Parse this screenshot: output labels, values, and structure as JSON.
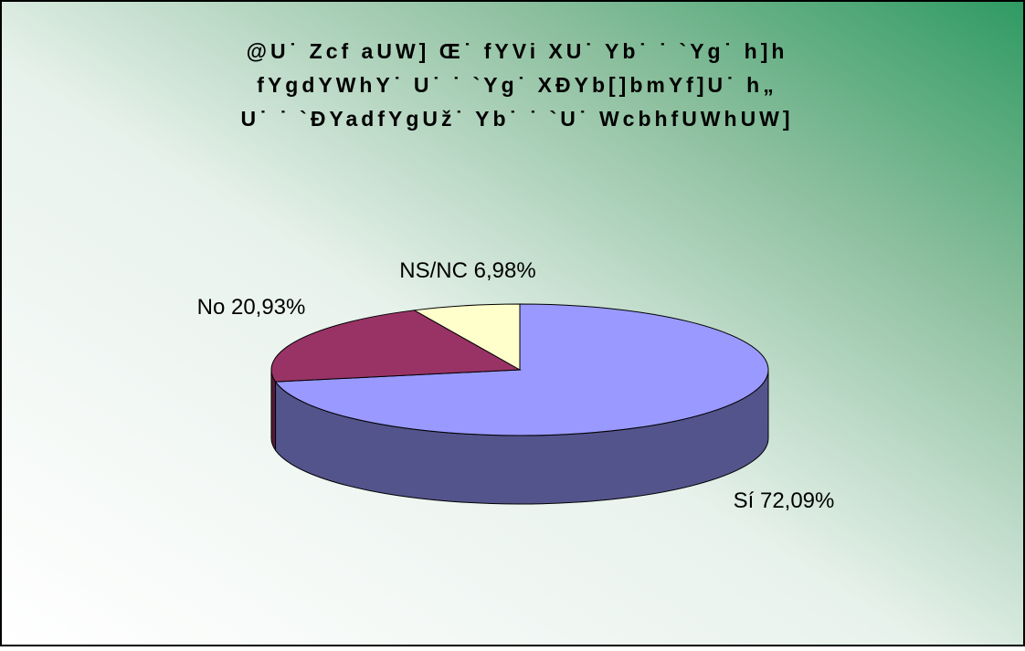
{
  "chart_data": {
    "type": "pie",
    "title": [
      "@U˙ Zcf aUW] Œ˙ fYVi XU˙ Yb˙ ˙ `Yg˙ h]h",
      "fYgdYWhY˙ U˙ ˙ `Yg˙ XĐYb[]bmYf]U˙ h„",
      "U˙ ˙ `ĐYadfYgUž˙ Yb˙ ˙ `U˙ WcbhfUWhUW]"
    ],
    "categories": [
      "Sí",
      "No",
      "NS/NC"
    ],
    "values": [
      72.09,
      20.93,
      6.98
    ],
    "value_labels": [
      "72,09%",
      "20,93%",
      "6,98%"
    ],
    "colors": [
      "#9999ff",
      "#993366",
      "#ffffcc"
    ]
  }
}
